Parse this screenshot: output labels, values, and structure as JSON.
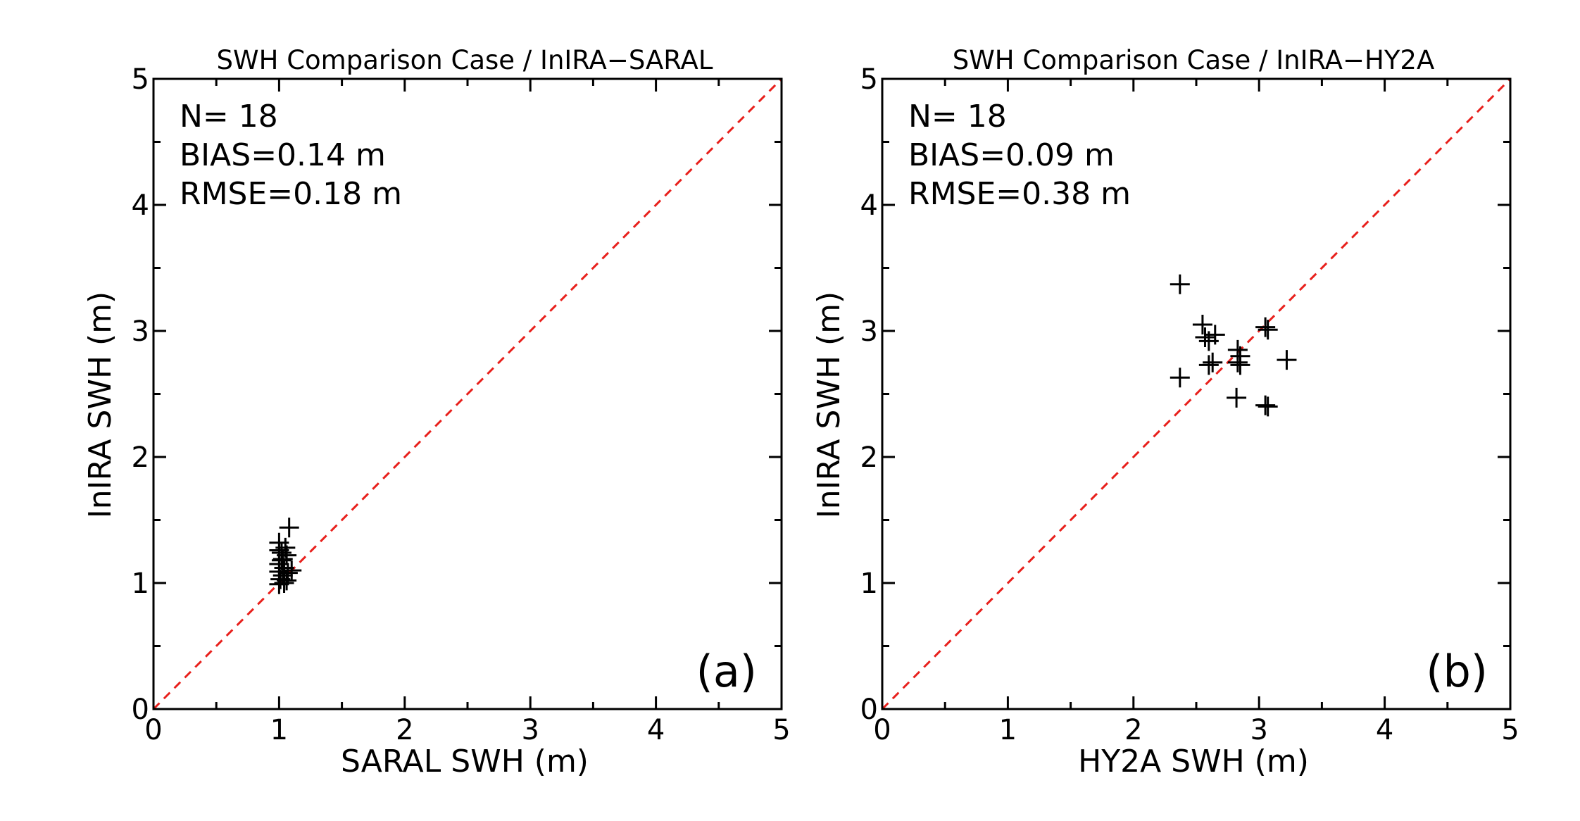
{
  "chart_data": [
    {
      "type": "scatter",
      "panel_label": "(a)",
      "title": "SWH Comparison Case / InIRA−SARAL",
      "xlabel": "SARAL SWH (m)",
      "ylabel": "InIRA SWH (m)",
      "xlim": [
        0,
        5
      ],
      "ylim": [
        0,
        5
      ],
      "xticks": [
        "0",
        "1",
        "2",
        "3",
        "4",
        "5"
      ],
      "yticks": [
        "0",
        "1",
        "2",
        "3",
        "4",
        "5"
      ],
      "stats": [
        "N= 18",
        "BIAS=0.14 m",
        "RMSE=0.18 m"
      ],
      "reference_line": {
        "name": "1:1 line",
        "x": [
          0,
          5
        ],
        "y": [
          0,
          5
        ],
        "color": "#e8201c",
        "style": "dashed"
      },
      "series": [
        {
          "name": "InIRA vs SARAL",
          "marker": "+",
          "color": "#000000",
          "points": [
            [
              1.0,
              1.32
            ],
            [
              1.05,
              1.28
            ],
            [
              1.02,
              1.24
            ],
            [
              1.08,
              1.44
            ],
            [
              1.03,
              1.19
            ],
            [
              1.0,
              1.15
            ],
            [
              1.04,
              1.12
            ],
            [
              1.0,
              1.09
            ],
            [
              1.1,
              1.1
            ],
            [
              1.03,
              1.06
            ],
            [
              1.01,
              1.03
            ],
            [
              1.06,
              1.02
            ],
            [
              1.0,
              0.99
            ],
            [
              1.04,
              1.0
            ],
            [
              1.02,
              1.18
            ],
            [
              1.06,
              1.22
            ],
            [
              1.0,
              1.26
            ],
            [
              1.07,
              1.08
            ]
          ]
        }
      ]
    },
    {
      "type": "scatter",
      "panel_label": "(b)",
      "title": "SWH Comparison Case / InIRA−HY2A",
      "xlabel": "HY2A SWH (m)",
      "ylabel": "InIRA SWH (m)",
      "xlim": [
        0,
        5
      ],
      "ylim": [
        0,
        5
      ],
      "xticks": [
        "0",
        "1",
        "2",
        "3",
        "4",
        "5"
      ],
      "yticks": [
        "0",
        "1",
        "2",
        "3",
        "4",
        "5"
      ],
      "stats": [
        "N= 18",
        "BIAS=0.09 m",
        "RMSE=0.38 m"
      ],
      "reference_line": {
        "name": "1:1 line",
        "x": [
          0,
          5
        ],
        "y": [
          0,
          5
        ],
        "color": "#e8201c",
        "style": "dashed"
      },
      "series": [
        {
          "name": "InIRA vs HY2A",
          "marker": "+",
          "color": "#000000",
          "points": [
            [
              2.37,
              3.37
            ],
            [
              2.55,
              3.05
            ],
            [
              2.57,
              2.95
            ],
            [
              2.6,
              2.92
            ],
            [
              2.65,
              2.97
            ],
            [
              2.63,
              2.75
            ],
            [
              2.6,
              2.73
            ],
            [
              2.37,
              2.63
            ],
            [
              2.83,
              2.85
            ],
            [
              2.85,
              2.8
            ],
            [
              2.83,
              2.75
            ],
            [
              2.85,
              2.73
            ],
            [
              2.82,
              2.47
            ],
            [
              3.05,
              3.03
            ],
            [
              3.07,
              3.01
            ],
            [
              3.22,
              2.77
            ],
            [
              3.05,
              2.41
            ],
            [
              3.07,
              2.4
            ]
          ]
        }
      ]
    }
  ]
}
